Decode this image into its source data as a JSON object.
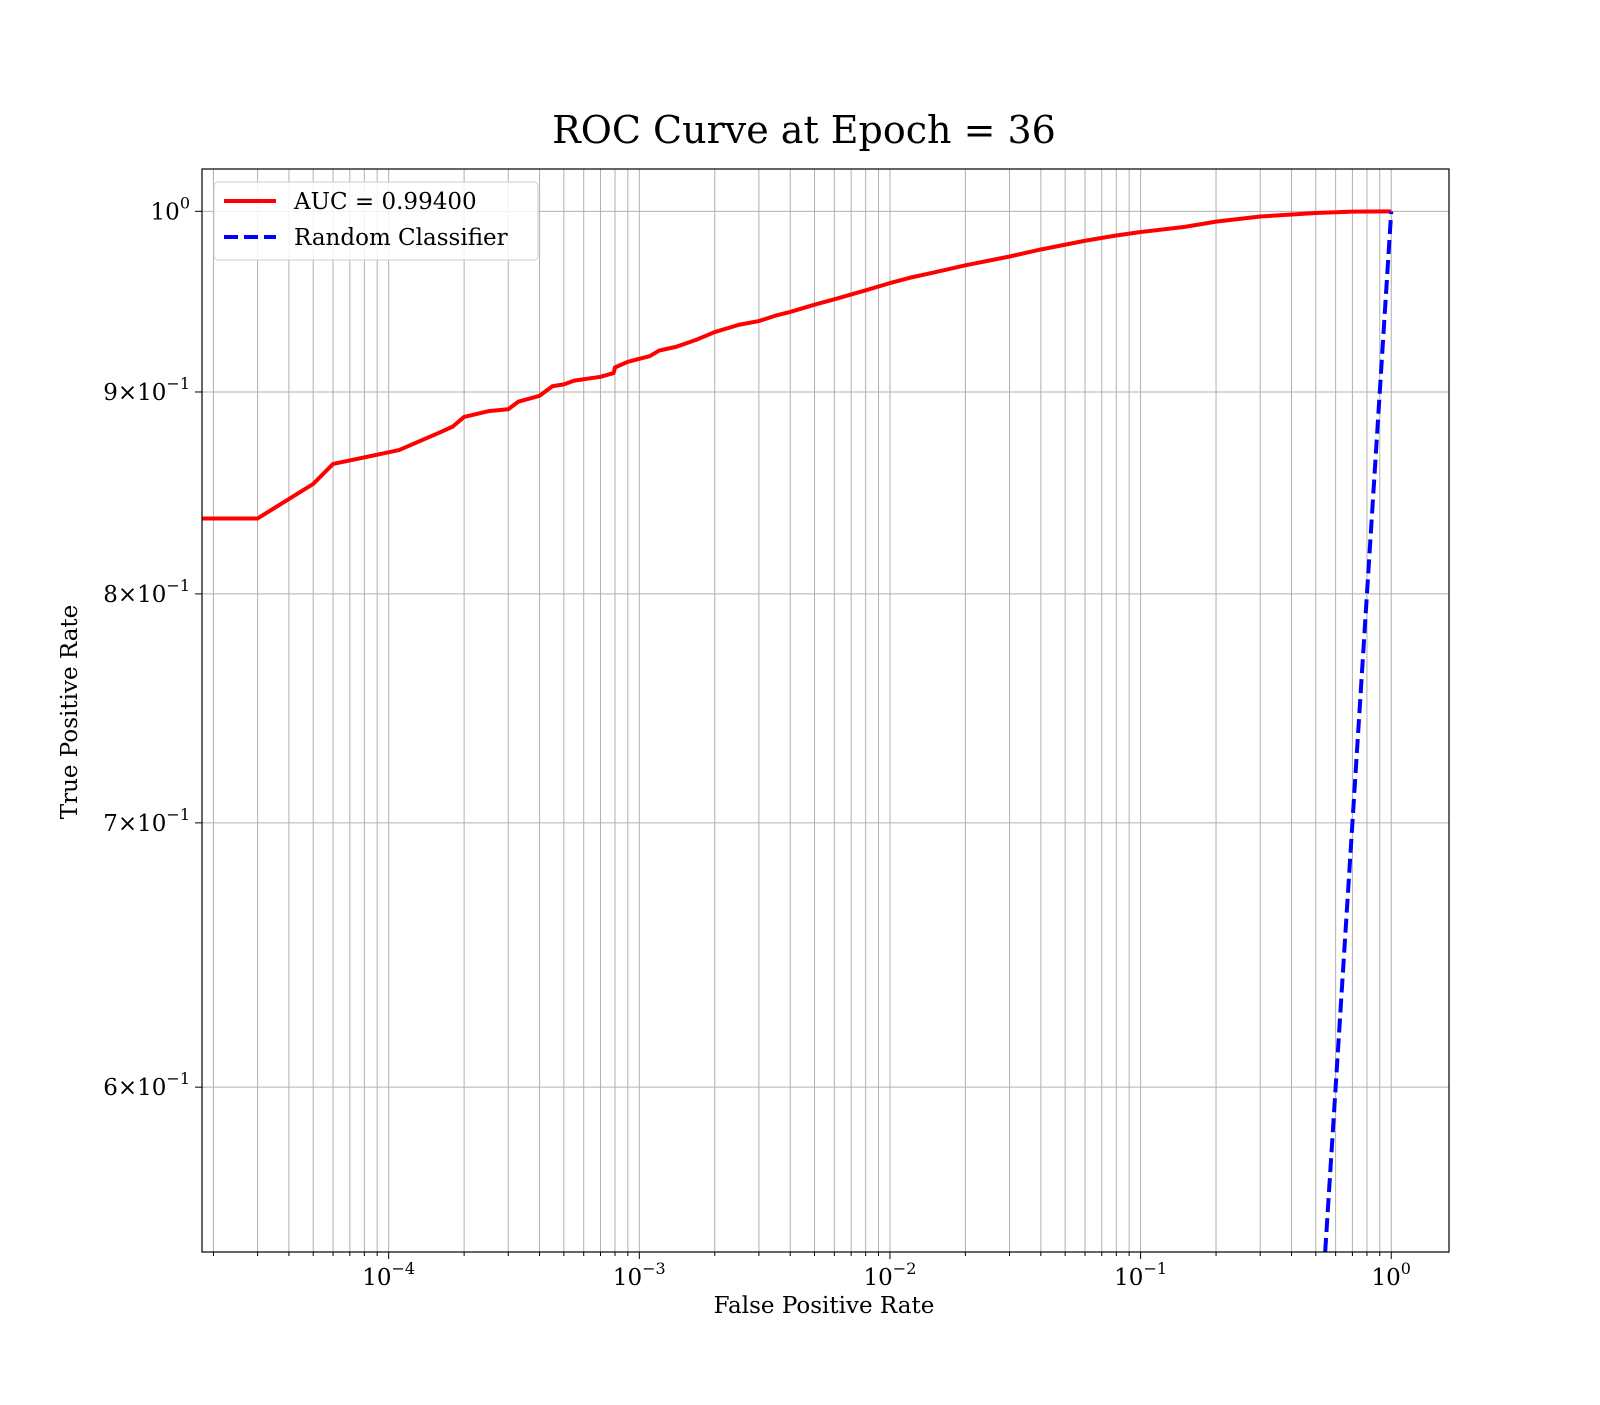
{
  "chart_data": {
    "type": "line",
    "title": "ROC Curve at Epoch = 36",
    "xlabel": "False Positive Rate",
    "ylabel": "True Positive Rate",
    "xscale": "log",
    "yscale": "log",
    "xlim": [
      1.8e-05,
      1.7
    ],
    "ylim": [
      0.545,
      1.025
    ],
    "grid": true,
    "legend_position": "upper-left",
    "x_ticks": [
      {
        "value": 0.0001,
        "base": "10",
        "exp": "−4"
      },
      {
        "value": 0.001,
        "base": "10",
        "exp": "−3"
      },
      {
        "value": 0.01,
        "base": "10",
        "exp": "−2"
      },
      {
        "value": 0.1,
        "base": "10",
        "exp": "−1"
      },
      {
        "value": 1,
        "base": "10",
        "exp": "0"
      }
    ],
    "y_ticks": [
      {
        "value": 1.0,
        "mant": "",
        "base": "10",
        "exp": "0"
      },
      {
        "value": 0.9,
        "mant": "9×",
        "base": "10",
        "exp": "−1"
      },
      {
        "value": 0.8,
        "mant": "8×",
        "base": "10",
        "exp": "−1"
      },
      {
        "value": 0.7,
        "mant": "7×",
        "base": "10",
        "exp": "−1"
      },
      {
        "value": 0.6,
        "mant": "6×",
        "base": "10",
        "exp": "−1"
      }
    ],
    "series": [
      {
        "name": "AUC = 0.99400",
        "color": "#ff0000",
        "style": "solid",
        "x": [
          1.8e-05,
          3e-05,
          5e-05,
          6e-05,
          0.00011,
          0.00016,
          0.00018,
          0.0002,
          0.00025,
          0.0003,
          0.00033,
          0.0004,
          0.00045,
          0.0005,
          0.00055,
          0.0007,
          0.00079,
          0.0008,
          0.0009,
          0.0011,
          0.0012,
          0.0014,
          0.0017,
          0.002,
          0.0025,
          0.003,
          0.0035,
          0.004,
          0.005,
          0.006,
          0.008,
          0.01,
          0.012,
          0.015,
          0.02,
          0.03,
          0.04,
          0.06,
          0.08,
          0.1,
          0.15,
          0.2,
          0.3,
          0.5,
          0.7,
          1.0
        ],
        "y": [
          0.836,
          0.836,
          0.853,
          0.863,
          0.87,
          0.879,
          0.882,
          0.887,
          0.89,
          0.891,
          0.895,
          0.898,
          0.903,
          0.904,
          0.906,
          0.908,
          0.91,
          0.913,
          0.916,
          0.919,
          0.922,
          0.924,
          0.928,
          0.932,
          0.936,
          0.938,
          0.941,
          0.943,
          0.947,
          0.95,
          0.955,
          0.959,
          0.962,
          0.965,
          0.969,
          0.974,
          0.978,
          0.983,
          0.986,
          0.988,
          0.991,
          0.994,
          0.997,
          0.999,
          0.9998,
          1.0
        ]
      },
      {
        "name": "Random Classifier",
        "color": "#0000ff",
        "style": "dashed",
        "x": [
          0.545,
          1.0
        ],
        "y": [
          0.545,
          1.0
        ]
      }
    ]
  }
}
